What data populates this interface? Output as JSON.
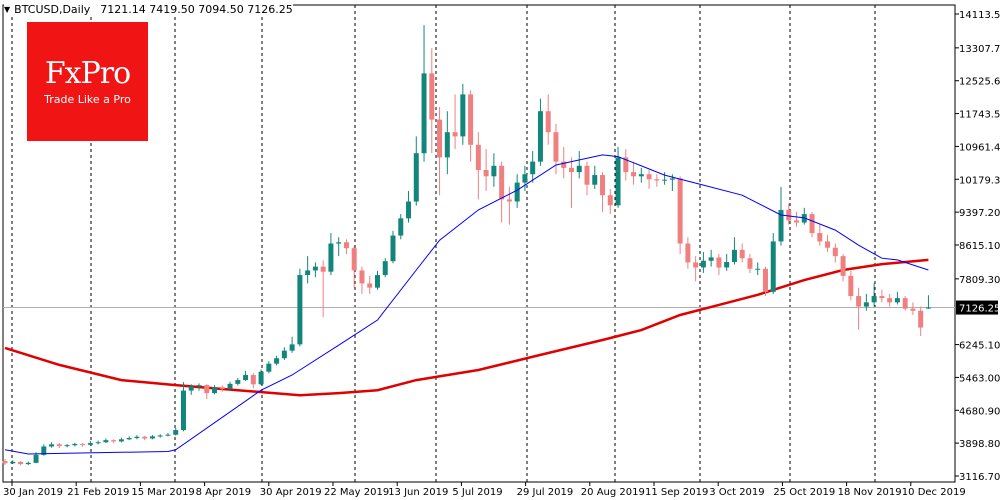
{
  "header": {
    "symbol": "BTCUSD,Daily",
    "ohlc": "7121.14 7419.50 7094.50 7126.25",
    "icon": "triangle-down-icon"
  },
  "logo": {
    "brand": "FxPro",
    "tagline": "Trade Like a Pro",
    "color": "#f01414"
  },
  "chart_data": {
    "type": "candlestick",
    "title": "",
    "ylim": [
      3116.7,
      14113.5
    ],
    "grid": "vertical dashed separators",
    "current_price": "7126.25",
    "y_ticks": [
      "14113.50",
      "13307.70",
      "12525.60",
      "11743.50",
      "10961.40",
      "10179.30",
      "9397.20",
      "8615.10",
      "7809.30",
      "6245.10",
      "5463.00",
      "4680.90",
      "3898.80",
      "3116.70"
    ],
    "x_ticks": [
      "30 Jan 2019",
      "21 Feb 2019",
      "15 Mar 2019",
      "8 Apr 2019",
      "30 Apr 2019",
      "22 May 2019",
      "13 Jun 2019",
      "5 Jul 2019",
      "29 Jul 2019",
      "20 Aug 2019",
      "11 Sep 2019",
      "3 Oct 2019",
      "25 Oct 2019",
      "18 Nov 2019",
      "10 Dec 2019"
    ],
    "colors": {
      "bull": "#13867c",
      "bear": "#f08080",
      "ma_fast": "#0000ff",
      "ma_slow": "#e00000"
    },
    "candles_ohlc": [
      [
        3470,
        3520,
        3380,
        3420
      ],
      [
        3420,
        3490,
        3400,
        3450
      ],
      [
        3450,
        3470,
        3370,
        3400
      ],
      [
        3400,
        3460,
        3380,
        3430
      ],
      [
        3430,
        3680,
        3420,
        3620
      ],
      [
        3620,
        3870,
        3600,
        3820
      ],
      [
        3820,
        3920,
        3790,
        3870
      ],
      [
        3870,
        3900,
        3780,
        3830
      ],
      [
        3830,
        3880,
        3800,
        3850
      ],
      [
        3850,
        3910,
        3820,
        3880
      ],
      [
        3880,
        3900,
        3810,
        3860
      ],
      [
        3860,
        3950,
        3840,
        3900
      ],
      [
        3900,
        3960,
        3870,
        3920
      ],
      [
        3920,
        4010,
        3900,
        3970
      ],
      [
        3970,
        3990,
        3900,
        3940
      ],
      [
        3940,
        4030,
        3920,
        3990
      ],
      [
        3990,
        4060,
        3970,
        4020
      ],
      [
        4020,
        4090,
        3990,
        4050
      ],
      [
        4050,
        4070,
        3970,
        4010
      ],
      [
        4010,
        4090,
        3990,
        4060
      ],
      [
        4060,
        4110,
        4030,
        4080
      ],
      [
        4080,
        4140,
        4060,
        4100
      ],
      [
        4100,
        4260,
        4080,
        4210
      ],
      [
        4210,
        5350,
        4180,
        5150
      ],
      [
        5150,
        5300,
        5050,
        5250
      ],
      [
        5250,
        5320,
        5150,
        5280
      ],
      [
        5280,
        5300,
        4950,
        5090
      ],
      [
        5090,
        5280,
        5060,
        5230
      ],
      [
        5230,
        5270,
        5120,
        5190
      ],
      [
        5190,
        5360,
        5170,
        5310
      ],
      [
        5310,
        5450,
        5270,
        5400
      ],
      [
        5400,
        5620,
        5380,
        5520
      ],
      [
        5520,
        5560,
        5200,
        5300
      ],
      [
        5300,
        5650,
        5280,
        5600
      ],
      [
        5600,
        5850,
        5560,
        5790
      ],
      [
        5790,
        5980,
        5750,
        5920
      ],
      [
        5920,
        6180,
        5880,
        6100
      ],
      [
        6100,
        6430,
        6050,
        6250
      ],
      [
        6250,
        8050,
        6200,
        7900
      ],
      [
        7900,
        8350,
        7700,
        8010
      ],
      [
        8010,
        8200,
        7850,
        8100
      ],
      [
        8100,
        8250,
        6900,
        7980
      ],
      [
        7980,
        8900,
        7900,
        8650
      ],
      [
        8650,
        8800,
        8350,
        8680
      ],
      [
        8680,
        8750,
        8400,
        8540
      ],
      [
        8540,
        8600,
        7600,
        8010
      ],
      [
        8010,
        8100,
        7450,
        7700
      ],
      [
        7700,
        7880,
        7450,
        7600
      ],
      [
        7600,
        8000,
        7550,
        7900
      ],
      [
        7900,
        8300,
        7850,
        8230
      ],
      [
        8230,
        8950,
        8180,
        8840
      ],
      [
        8840,
        9350,
        8750,
        9250
      ],
      [
        9250,
        9900,
        9150,
        9650
      ],
      [
        9650,
        11200,
        9550,
        10800
      ],
      [
        10800,
        13850,
        10600,
        12700
      ],
      [
        12700,
        13300,
        10800,
        11600
      ],
      [
        11600,
        11900,
        9800,
        10700
      ],
      [
        10700,
        11800,
        10300,
        11300
      ],
      [
        11300,
        12200,
        10900,
        11200
      ],
      [
        11200,
        12450,
        11000,
        12200
      ],
      [
        12200,
        12300,
        10600,
        11000
      ],
      [
        11000,
        11300,
        9700,
        10400
      ],
      [
        10400,
        10900,
        9900,
        10250
      ],
      [
        10250,
        10800,
        10000,
        10500
      ],
      [
        10500,
        10600,
        9150,
        9700
      ],
      [
        9700,
        10000,
        9100,
        9650
      ],
      [
        9650,
        10300,
        9500,
        10100
      ],
      [
        10100,
        10500,
        9900,
        10300
      ],
      [
        10300,
        10850,
        10100,
        10600
      ],
      [
        10600,
        12100,
        10500,
        11800
      ],
      [
        11800,
        12200,
        11000,
        11300
      ],
      [
        11300,
        11500,
        10300,
        10600
      ],
      [
        10600,
        10950,
        10200,
        10450
      ],
      [
        10450,
        10700,
        9500,
        10350
      ],
      [
        10350,
        10850,
        10200,
        10500
      ],
      [
        10500,
        10600,
        9800,
        10050
      ],
      [
        10050,
        10500,
        9950,
        10280
      ],
      [
        10280,
        10350,
        9400,
        9800
      ],
      [
        9800,
        9950,
        9350,
        9560
      ],
      [
        9560,
        10950,
        9500,
        10700
      ],
      [
        10700,
        10900,
        10150,
        10350
      ],
      [
        10350,
        10600,
        10050,
        10250
      ],
      [
        10250,
        10450,
        10100,
        10300
      ],
      [
        10300,
        10400,
        9950,
        10180
      ],
      [
        10180,
        10300,
        10000,
        10150
      ],
      [
        10150,
        10350,
        10050,
        10170
      ],
      [
        10170,
        10300,
        9900,
        10200
      ],
      [
        10200,
        10250,
        8400,
        8650
      ],
      [
        8650,
        8800,
        8050,
        8200
      ],
      [
        8200,
        8350,
        7750,
        8080
      ],
      [
        8080,
        8450,
        7950,
        8240
      ],
      [
        8240,
        8500,
        8100,
        8320
      ],
      [
        8320,
        8400,
        7900,
        8080
      ],
      [
        8080,
        8400,
        8000,
        8210
      ],
      [
        8210,
        8800,
        8150,
        8500
      ],
      [
        8500,
        8650,
        8200,
        8300
      ],
      [
        8300,
        8400,
        7950,
        8050
      ],
      [
        8050,
        8200,
        7900,
        8050
      ],
      [
        8050,
        8100,
        7400,
        7500
      ],
      [
        7500,
        8900,
        7450,
        8700
      ],
      [
        8700,
        10000,
        8600,
        9450
      ],
      [
        9450,
        9600,
        9100,
        9200
      ],
      [
        9200,
        9400,
        9050,
        9150
      ],
      [
        9150,
        9500,
        9100,
        9350
      ],
      [
        9350,
        9400,
        8800,
        8900
      ],
      [
        8900,
        9100,
        8600,
        8700
      ],
      [
        8700,
        8850,
        8450,
        8550
      ],
      [
        8550,
        8650,
        8200,
        8350
      ],
      [
        8350,
        8400,
        7750,
        7880
      ],
      [
        7880,
        8000,
        7300,
        7400
      ],
      [
        7400,
        7600,
        6600,
        7150
      ],
      [
        7150,
        7450,
        7050,
        7250
      ],
      [
        7250,
        7700,
        7150,
        7400
      ],
      [
        7400,
        7550,
        7250,
        7350
      ],
      [
        7350,
        7450,
        7150,
        7250
      ],
      [
        7250,
        7500,
        7200,
        7350
      ],
      [
        7350,
        7400,
        7050,
        7100
      ],
      [
        7100,
        7250,
        6950,
        7050
      ],
      [
        7050,
        7150,
        6450,
        6650
      ],
      [
        7121.14,
        7419.5,
        7094.5,
        7126.25
      ]
    ],
    "series": [
      {
        "kind": "moving-average-fast",
        "points": [
          [
            0,
            3740
          ],
          [
            3,
            3640
          ],
          [
            8,
            3660
          ],
          [
            21,
            3700
          ],
          [
            22,
            3740
          ],
          [
            33,
            5160
          ],
          [
            37,
            5520
          ],
          [
            43,
            6230
          ],
          [
            48,
            6830
          ],
          [
            53,
            8020
          ],
          [
            56,
            8730
          ],
          [
            61,
            9450
          ],
          [
            66,
            9920
          ],
          [
            71,
            10520
          ],
          [
            77,
            10760
          ],
          [
            79,
            10720
          ],
          [
            85,
            10280
          ],
          [
            90,
            10040
          ],
          [
            95,
            9800
          ],
          [
            100,
            9330
          ],
          [
            103,
            9260
          ],
          [
            107,
            8970
          ],
          [
            110,
            8610
          ],
          [
            113,
            8300
          ],
          [
            115,
            8260
          ],
          [
            119,
            8020
          ]
        ]
      },
      {
        "kind": "moving-average-slow",
        "points": [
          [
            0,
            6165
          ],
          [
            7,
            5760
          ],
          [
            15,
            5400
          ],
          [
            22,
            5280
          ],
          [
            30,
            5160
          ],
          [
            38,
            5040
          ],
          [
            43,
            5090
          ],
          [
            48,
            5160
          ],
          [
            53,
            5400
          ],
          [
            61,
            5640
          ],
          [
            69,
            6000
          ],
          [
            77,
            6355
          ],
          [
            82,
            6590
          ],
          [
            87,
            6950
          ],
          [
            92,
            7190
          ],
          [
            97,
            7430
          ],
          [
            103,
            7780
          ],
          [
            108,
            8020
          ],
          [
            113,
            8160
          ],
          [
            119,
            8260
          ]
        ]
      }
    ]
  }
}
